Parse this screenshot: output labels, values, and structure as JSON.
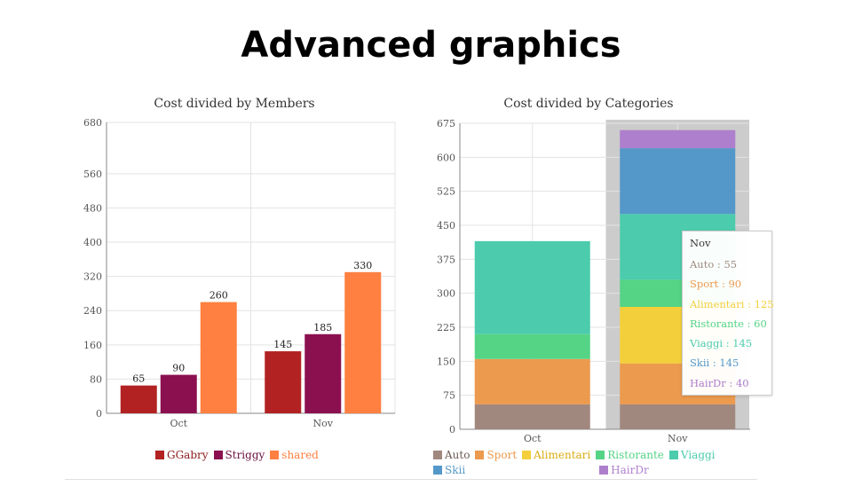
{
  "page": {
    "title": "Advanced graphics"
  },
  "chart_data": [
    {
      "type": "bar",
      "title": "Cost divided by Members",
      "categories": [
        "Oct",
        "Nov"
      ],
      "series": [
        {
          "name": "GGabry",
          "values": [
            65,
            145
          ],
          "color": "#b22222"
        },
        {
          "name": "Striggy",
          "values": [
            90,
            185
          ],
          "color": "#8b1050"
        },
        {
          "name": "shared",
          "values": [
            260,
            330
          ],
          "color": "#ff8040"
        }
      ],
      "yticks": [
        0,
        80,
        160,
        240,
        320,
        400,
        480,
        560,
        680
      ],
      "ylim": [
        0,
        680
      ],
      "grid": true,
      "legend": "bottom"
    },
    {
      "type": "bar",
      "stacked": true,
      "title": "Cost divided by Categories",
      "categories": [
        "Oct",
        "Nov"
      ],
      "series": [
        {
          "name": "Auto",
          "values": [
            55,
            55
          ],
          "color": "#a1887f"
        },
        {
          "name": "Sport",
          "values": [
            100,
            90
          ],
          "color": "#ec9a4e"
        },
        {
          "name": "Alimentari",
          "values": [
            0,
            125
          ],
          "color": "#f4cf3c"
        },
        {
          "name": "Ristorante",
          "values": [
            55,
            60
          ],
          "color": "#55d486"
        },
        {
          "name": "Viaggi",
          "values": [
            205,
            145
          ],
          "color": "#4ccbad"
        },
        {
          "name": "Skii",
          "values": [
            0,
            145
          ],
          "color": "#5498c9"
        },
        {
          "name": "HairDr",
          "values": [
            0,
            40
          ],
          "color": "#ae7fcc"
        }
      ],
      "yticks": [
        0,
        75,
        150,
        225,
        300,
        375,
        450,
        525,
        600,
        675
      ],
      "ylim": [
        0,
        675
      ],
      "grid": true,
      "legend": "bottom",
      "highlight_category": "Nov",
      "tooltip": {
        "title": "Nov",
        "rows": [
          {
            "label": "Auto",
            "value": "55",
            "color": "#a1887f"
          },
          {
            "label": "Sport",
            "value": "90",
            "color": "#ec9a4e"
          },
          {
            "label": "Alimentari",
            "value": "125",
            "color": "#f4cf3c"
          },
          {
            "label": "Ristorante",
            "value": "60",
            "color": "#55d486"
          },
          {
            "label": "Viaggi",
            "value": "145",
            "color": "#4ccbad"
          },
          {
            "label": "Skii",
            "value": "145",
            "color": "#5498c9"
          },
          {
            "label": "HairDr",
            "value": "40",
            "color": "#ae7fcc"
          }
        ]
      }
    }
  ]
}
